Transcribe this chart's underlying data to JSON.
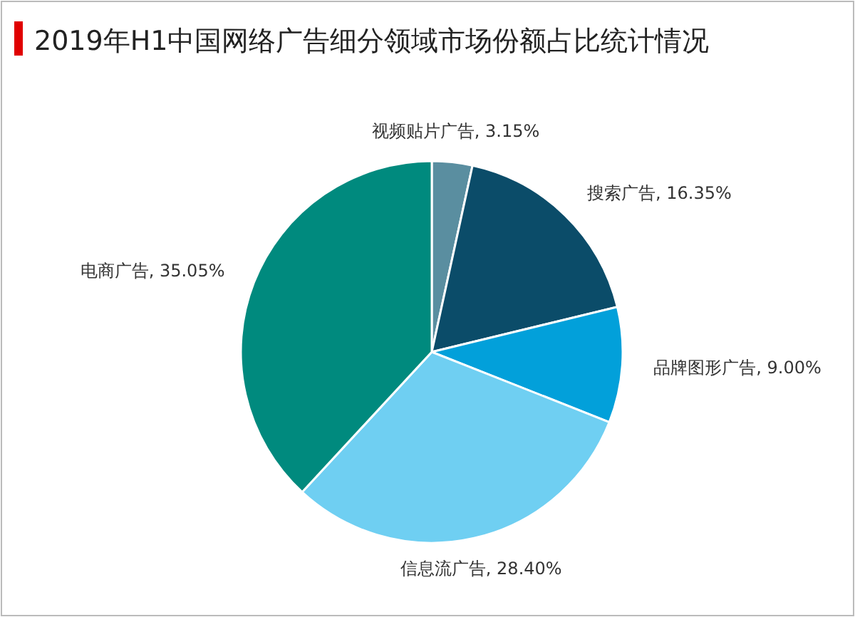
{
  "chart_data": {
    "type": "pie",
    "title": "2019年H1中国网络广告细分领域市场份额占比统计情况",
    "categories": [
      "视频贴片广告",
      "搜索广告",
      "品牌图形广告",
      "信息流广告",
      "电商广告"
    ],
    "values": [
      3.15,
      16.35,
      9.0,
      28.4,
      35.05
    ],
    "value_labels": [
      "3.15%",
      "16.35%",
      "9.00%",
      "28.40%",
      "35.05%"
    ],
    "colors": [
      "#5a8ea0",
      "#0b4c69",
      "#02a0da",
      "#6fcff2",
      "#008a7e"
    ]
  }
}
